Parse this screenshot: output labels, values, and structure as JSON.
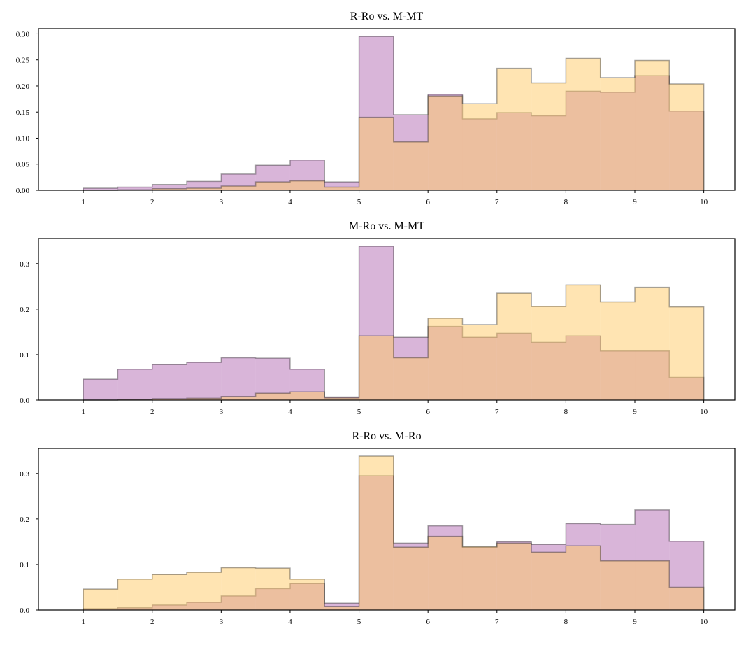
{
  "chart_data": [
    {
      "type": "histogram",
      "title": "R-Ro vs. M-MT",
      "xlabel": "",
      "ylabel": "",
      "xlim": [
        0.35,
        10.45
      ],
      "ylim": [
        0,
        0.31
      ],
      "x_ticks": [
        "1",
        "2",
        "3",
        "4",
        "5",
        "6",
        "7",
        "8",
        "9",
        "10"
      ],
      "y_ticks": [
        "0.00",
        "0.05",
        "0.10",
        "0.15",
        "0.20",
        "0.25",
        "0.30"
      ],
      "bin_edges": [
        1,
        1.5,
        2,
        2.5,
        3,
        3.5,
        4,
        4.5,
        5,
        5.5,
        6,
        6.5,
        7,
        7.5,
        8,
        8.5,
        9,
        9.5,
        10
      ],
      "grid": false,
      "series": [
        {
          "color": "#b36bb3",
          "values": [
            0.004,
            0.006,
            0.011,
            0.017,
            0.031,
            0.048,
            0.058,
            0.016,
            0.295,
            0.145,
            0.184,
            0.137,
            0.149,
            0.143,
            0.19,
            0.188,
            0.22,
            0.152
          ]
        },
        {
          "color": "#ffc966",
          "values": [
            0.0,
            0.001,
            0.003,
            0.004,
            0.008,
            0.016,
            0.018,
            0.006,
            0.14,
            0.093,
            0.181,
            0.166,
            0.234,
            0.206,
            0.253,
            0.216,
            0.249,
            0.204
          ]
        }
      ]
    },
    {
      "type": "histogram",
      "title": "M-Ro vs. M-MT",
      "xlabel": "",
      "ylabel": "",
      "xlim": [
        0.35,
        10.45
      ],
      "ylim": [
        0,
        0.355
      ],
      "x_ticks": [
        "1",
        "2",
        "3",
        "4",
        "5",
        "6",
        "7",
        "8",
        "9",
        "10"
      ],
      "y_ticks": [
        "0.0",
        "0.1",
        "0.2",
        "0.3"
      ],
      "bin_edges": [
        1,
        1.5,
        2,
        2.5,
        3,
        3.5,
        4,
        4.5,
        5,
        5.5,
        6,
        6.5,
        7,
        7.5,
        8,
        8.5,
        9,
        9.5,
        10
      ],
      "grid": false,
      "series": [
        {
          "color": "#b36bb3",
          "values": [
            0.046,
            0.068,
            0.078,
            0.083,
            0.093,
            0.092,
            0.068,
            0.007,
            0.338,
            0.138,
            0.162,
            0.138,
            0.147,
            0.127,
            0.141,
            0.108,
            0.108,
            0.05
          ]
        },
        {
          "color": "#ffc966",
          "values": [
            0.0,
            0.001,
            0.003,
            0.004,
            0.008,
            0.015,
            0.018,
            0.005,
            0.141,
            0.093,
            0.18,
            0.166,
            0.235,
            0.206,
            0.253,
            0.216,
            0.248,
            0.205
          ]
        }
      ]
    },
    {
      "type": "histogram",
      "title": "R-Ro vs. M-Ro",
      "xlabel": "",
      "ylabel": "",
      "xlim": [
        0.35,
        10.45
      ],
      "ylim": [
        0,
        0.355
      ],
      "x_ticks": [
        "1",
        "2",
        "3",
        "4",
        "5",
        "6",
        "7",
        "8",
        "9",
        "10"
      ],
      "y_ticks": [
        "0.0",
        "0.1",
        "0.2",
        "0.3"
      ],
      "bin_edges": [
        1,
        1.5,
        2,
        2.5,
        3,
        3.5,
        4,
        4.5,
        5,
        5.5,
        6,
        6.5,
        7,
        7.5,
        8,
        8.5,
        9,
        9.5,
        10
      ],
      "grid": false,
      "series": [
        {
          "color": "#b36bb3",
          "values": [
            0.003,
            0.005,
            0.011,
            0.017,
            0.031,
            0.047,
            0.058,
            0.015,
            0.295,
            0.147,
            0.185,
            0.138,
            0.15,
            0.144,
            0.19,
            0.188,
            0.22,
            0.151
          ]
        },
        {
          "color": "#ffc966",
          "values": [
            0.046,
            0.068,
            0.078,
            0.083,
            0.093,
            0.092,
            0.068,
            0.008,
            0.338,
            0.138,
            0.162,
            0.139,
            0.147,
            0.127,
            0.141,
            0.108,
            0.108,
            0.05
          ]
        }
      ]
    }
  ]
}
